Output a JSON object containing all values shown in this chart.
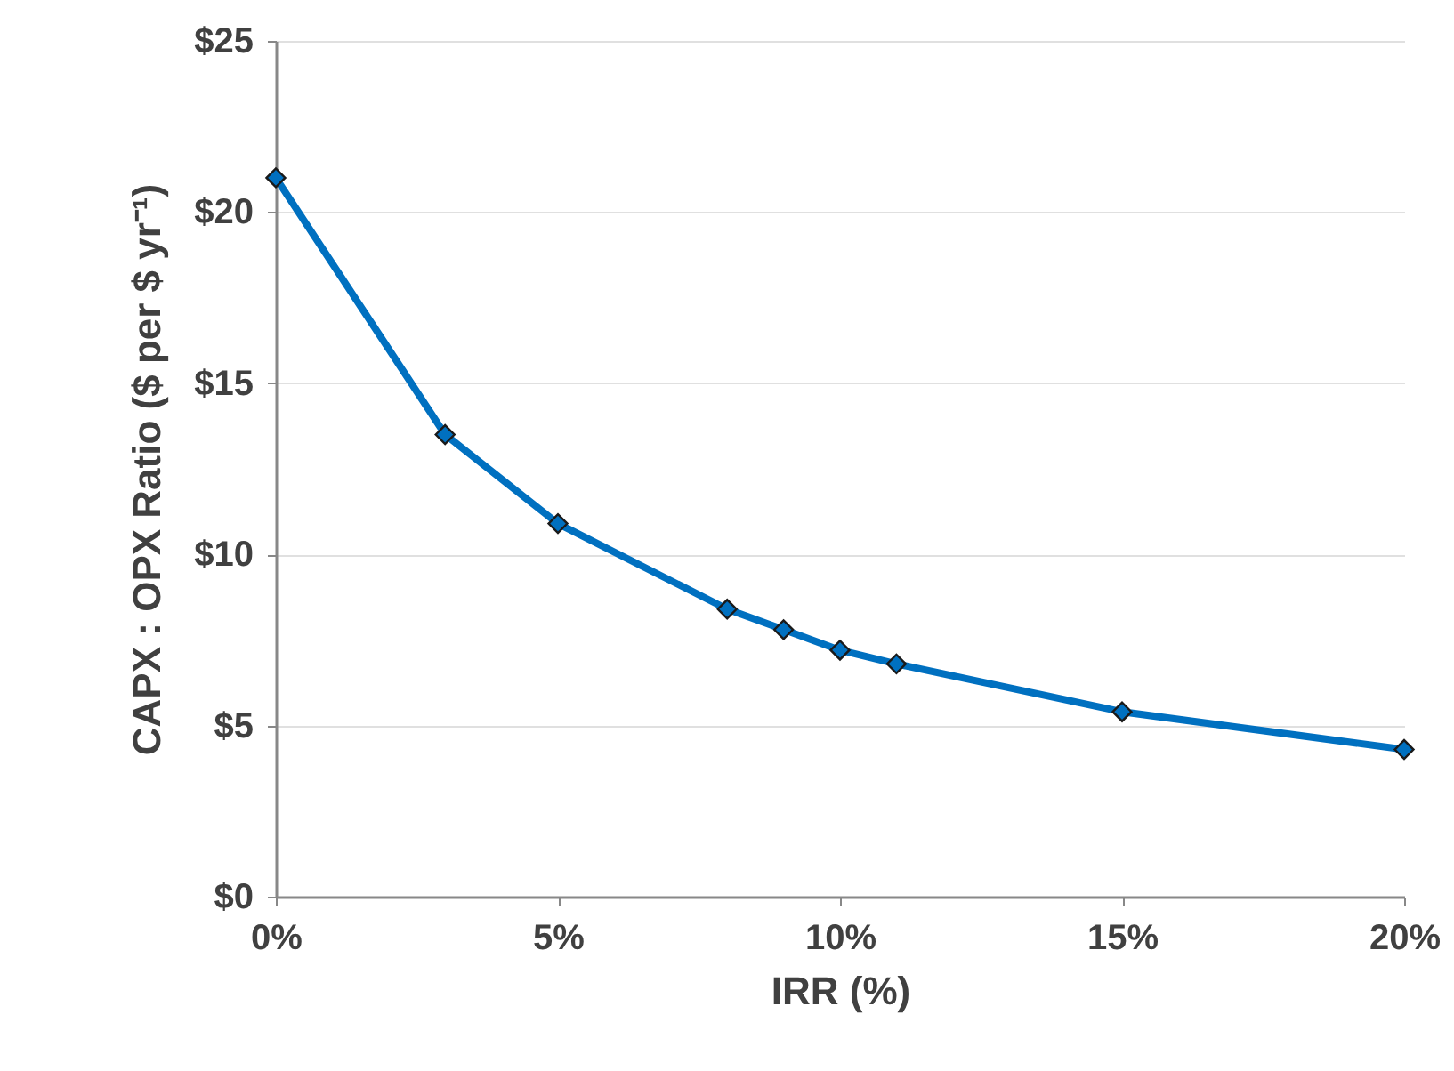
{
  "chart_data": {
    "type": "line",
    "xlabel": "IRR (%)",
    "ylabel": "CAPX : OPX Ratio ($ per  $ yr⁻¹)",
    "x": [
      0,
      3,
      5,
      8,
      9,
      10,
      11,
      15,
      20
    ],
    "series": [
      {
        "color": "#0070c0",
        "values": [
          21.0,
          13.5,
          10.9,
          8.4,
          7.8,
          7.2,
          6.8,
          5.4,
          4.3
        ]
      }
    ],
    "xlim": [
      0,
      20
    ],
    "xticks": [
      {
        "value": 0,
        "label": "0%"
      },
      {
        "value": 5,
        "label": "5%"
      },
      {
        "value": 10,
        "label": "10%"
      },
      {
        "value": 15,
        "label": "15%"
      },
      {
        "value": 20,
        "label": "20%"
      }
    ],
    "ylim": [
      0,
      25
    ],
    "yticks": [
      {
        "value": 0,
        "label": "$0"
      },
      {
        "value": 5,
        "label": "$5"
      },
      {
        "value": 10,
        "label": "$10"
      },
      {
        "value": 15,
        "label": "$15"
      },
      {
        "value": 20,
        "label": "$20"
      },
      {
        "value": 25,
        "label": "$25"
      }
    ],
    "grid": "y",
    "marker": "diamond",
    "line_style": "solid"
  }
}
